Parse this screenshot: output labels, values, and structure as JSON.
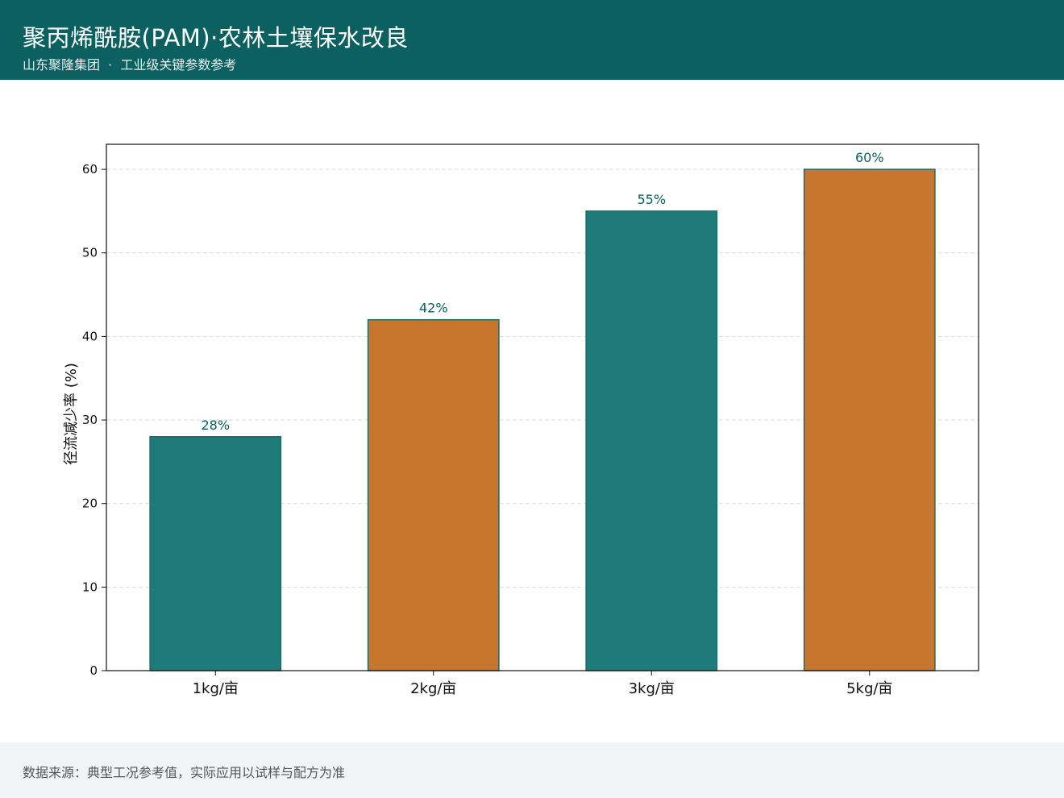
{
  "header": {
    "title": "聚丙烯酰胺(PAM)·农林土壤保水改良",
    "subtitle": "山东聚隆集团  ·  工业级关键参数参考"
  },
  "footer": {
    "source": "数据来源：典型工况参考值，实际应用以试样与配方为准"
  },
  "colors": {
    "header_bg": "#0c6060",
    "teal": "#1f7b7a",
    "orange": "#c8752e",
    "bar_edge": "#1b6b69",
    "value_label": "#0c6060",
    "grid": "#d9dede"
  },
  "chart_data": {
    "type": "bar",
    "categories": [
      "1kg/亩",
      "2kg/亩",
      "3kg/亩",
      "5kg/亩"
    ],
    "values": [
      28,
      42,
      55,
      60
    ],
    "value_labels": [
      "28%",
      "42%",
      "55%",
      "60%"
    ],
    "bar_colors": [
      "#1f7b7a",
      "#c8752e",
      "#1f7b7a",
      "#c8752e"
    ],
    "ylabel": "径流减少率 (%)",
    "xlabel": "",
    "ylim": [
      0,
      63
    ],
    "yticks": [
      0,
      10,
      20,
      30,
      40,
      50,
      60
    ],
    "grid": "horizontal dashed"
  }
}
